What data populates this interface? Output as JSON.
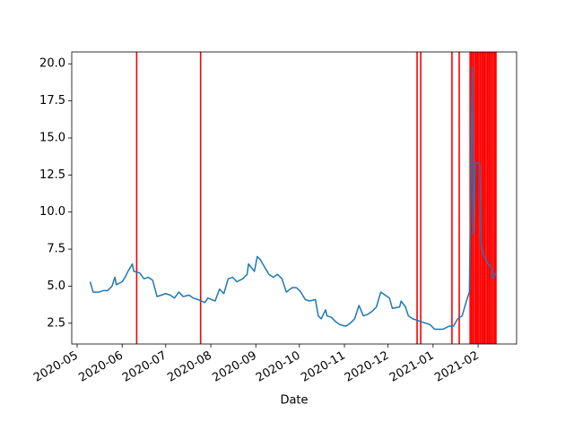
{
  "chart_data": {
    "type": "line",
    "xlabel": "Date",
    "x": [
      18392,
      18394,
      18398,
      18401,
      18404,
      18407,
      18409,
      18410,
      18414,
      18416,
      18418,
      18421,
      18422,
      18426,
      18429,
      18432,
      18435,
      18438,
      18441,
      18444,
      18447,
      18450,
      18453,
      18456,
      18460,
      18463,
      18466,
      18471,
      18473,
      18478,
      18481,
      18484,
      18487,
      18490,
      18493,
      18497,
      18500,
      18501,
      18505,
      18507,
      18509,
      18512,
      18515,
      18518,
      18521,
      18524,
      18527,
      18531,
      18534,
      18537,
      18540,
      18543,
      18547,
      18549,
      18551,
      18554,
      18555,
      18558,
      18561,
      18564,
      18568,
      18571,
      18574,
      18577,
      18580,
      18583,
      18586,
      18589,
      18592,
      18595,
      18598,
      18600,
      18605,
      18606,
      18609,
      18611,
      18614,
      18617,
      18620,
      18623,
      18626,
      18629,
      18632,
      18635,
      18639,
      18642,
      18645,
      18648,
      18651,
      18653,
      18655,
      18656,
      18657,
      18660,
      18661,
      18663,
      18666,
      18668,
      18669,
      18671
    ],
    "series": [
      {
        "color": "#1f77b4",
        "values": [
          5.3,
          4.6,
          4.6,
          4.7,
          4.7,
          5.0,
          5.6,
          5.1,
          5.3,
          5.6,
          6.0,
          6.5,
          6.0,
          5.9,
          5.5,
          5.6,
          5.4,
          4.3,
          4.4,
          4.5,
          4.4,
          4.2,
          4.6,
          4.3,
          4.4,
          4.2,
          4.1,
          3.9,
          4.2,
          4.0,
          4.8,
          4.5,
          5.5,
          5.6,
          5.3,
          5.5,
          5.8,
          6.5,
          6.0,
          7.0,
          6.8,
          6.3,
          5.8,
          5.6,
          5.8,
          5.5,
          4.6,
          4.9,
          4.9,
          4.6,
          4.1,
          4.0,
          4.1,
          3.0,
          2.8,
          3.4,
          3.0,
          2.9,
          2.6,
          2.4,
          2.3,
          2.5,
          2.8,
          3.7,
          3.0,
          3.1,
          3.3,
          3.6,
          4.6,
          4.4,
          4.2,
          3.5,
          3.6,
          4.0,
          3.6,
          3.0,
          2.8,
          2.7,
          2.6,
          2.5,
          2.4,
          2.1,
          2.1,
          2.1,
          2.3,
          2.3,
          2.8,
          3.0,
          4.0,
          4.6,
          19.8,
          8.5,
          13.3,
          13.3,
          7.8,
          7.0,
          6.5,
          6.3,
          5.5,
          5.9
        ]
      }
    ],
    "vlines": {
      "color": "#ff0000",
      "x": [
        18424,
        18468,
        18617,
        18619.5,
        18641,
        18646,
        18653.5,
        18654.5,
        18655.5,
        18656.5,
        18657.5,
        18658.5,
        18659.5,
        18660.5,
        18661.5,
        18662.5,
        18663.5,
        18664.5,
        18665.5,
        18666.5,
        18667.5,
        18668.5,
        18669.5,
        18670.5,
        18671.3
      ]
    },
    "xlim": [
      18379.3,
      18685.5
    ],
    "ylim": [
      1.1,
      20.8
    ],
    "xticks": [
      {
        "value": 18383,
        "label": "2020-05"
      },
      {
        "value": 18414,
        "label": "2020-06"
      },
      {
        "value": 18444,
        "label": "2020-07"
      },
      {
        "value": 18475,
        "label": "2020-08"
      },
      {
        "value": 18506,
        "label": "2020-09"
      },
      {
        "value": 18536,
        "label": "2020-10"
      },
      {
        "value": 18567,
        "label": "2020-11"
      },
      {
        "value": 18597,
        "label": "2020-12"
      },
      {
        "value": 18628,
        "label": "2021-01"
      },
      {
        "value": 18659,
        "label": "2021-02"
      }
    ],
    "yticks": [
      2.5,
      {
        "value": 5,
        "label": "5.0"
      },
      7.5,
      {
        "value": 10,
        "label": "10.0"
      },
      12.5,
      {
        "value": 15,
        "label": "15.0"
      },
      17.5,
      {
        "value": 20,
        "label": "20.0"
      }
    ]
  }
}
